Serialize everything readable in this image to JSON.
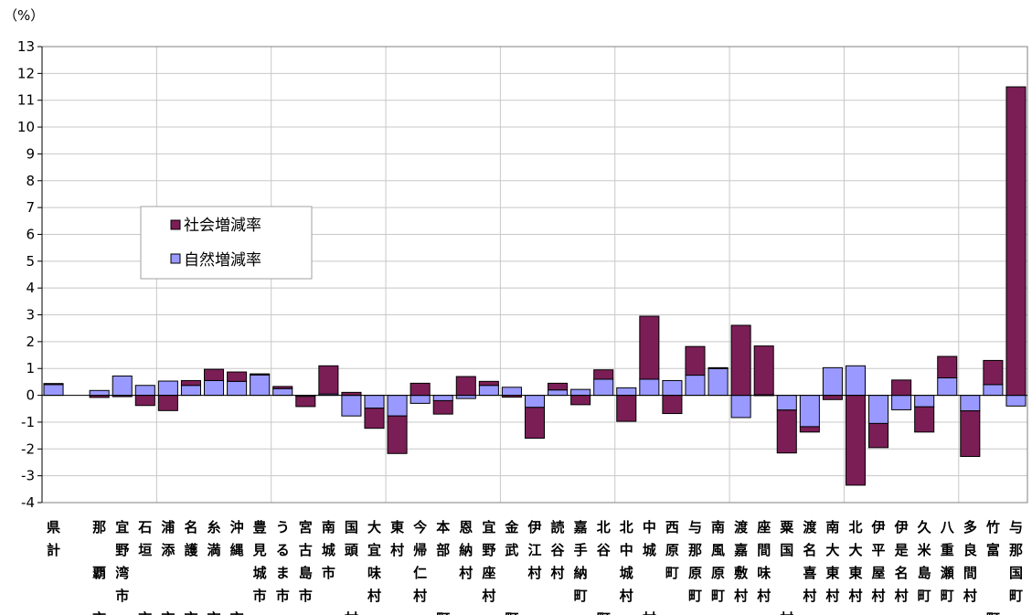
{
  "chart_data": {
    "type": "bar",
    "stacked": true,
    "unit_label": "（%）",
    "ylim": [
      -4,
      13
    ],
    "ytick_step": 1,
    "grid": true,
    "legend_position": "left-middle",
    "colors": {
      "social": "#7B1E56",
      "natural": "#9999FF",
      "grid": "#C8C8C8",
      "axis": "#000000",
      "plot_border": "#808080"
    },
    "categories": [
      "県計",
      "",
      "那覇市",
      "宜野湾市",
      "石垣市",
      "浦添市",
      "名護市",
      "糸満市",
      "沖縄市",
      "豊見城市",
      "うるま市",
      "宮古島市",
      "南城市",
      "国頭村",
      "大宜味村",
      "東村",
      "今帰仁村",
      "本部町",
      "恩納村",
      "宜野座村",
      "金武町",
      "伊江村",
      "読谷村",
      "嘉手納町",
      "北谷町",
      "北中城村",
      "中城村",
      "西原町",
      "与那原町",
      "南風原町",
      "渡嘉敷村",
      "座間味村",
      "粟国村",
      "渡名喜村",
      "南大東村",
      "北大東村",
      "伊平屋村",
      "伊是名村",
      "久米島町",
      "八重瀬町",
      "多良間村",
      "竹富町",
      "与那国町"
    ],
    "category_label_columns": [
      [
        "県",
        "計"
      ],
      [],
      [
        "那",
        "",
        "覇",
        "",
        "市"
      ],
      [
        "宜",
        "野",
        "湾",
        "市"
      ],
      [
        "石",
        "垣",
        "",
        "",
        "市"
      ],
      [
        "浦",
        "添",
        "",
        "",
        "市"
      ],
      [
        "名",
        "護",
        "",
        "",
        "市"
      ],
      [
        "糸",
        "満",
        "",
        "",
        "市"
      ],
      [
        "沖",
        "縄",
        "",
        "",
        "市"
      ],
      [
        "豊",
        "見",
        "城",
        "市"
      ],
      [
        "う",
        "る",
        "ま",
        "市"
      ],
      [
        "宮",
        "古",
        "島",
        "市"
      ],
      [
        "南",
        "城",
        "市"
      ],
      [
        "国",
        "頭",
        "",
        "",
        "村"
      ],
      [
        "大",
        "宜",
        "味",
        "村"
      ],
      [
        "東",
        "村"
      ],
      [
        "今",
        "帰",
        "仁",
        "村"
      ],
      [
        "本",
        "部",
        "",
        "",
        "町"
      ],
      [
        "恩",
        "納",
        "村"
      ],
      [
        "宜",
        "野",
        "座",
        "村"
      ],
      [
        "金",
        "武",
        "",
        "",
        "町"
      ],
      [
        "伊",
        "江",
        "村"
      ],
      [
        "読",
        "谷",
        "村"
      ],
      [
        "嘉",
        "手",
        "納",
        "町"
      ],
      [
        "北",
        "谷",
        "",
        "",
        "町"
      ],
      [
        "北",
        "中",
        "城",
        "村"
      ],
      [
        "中",
        "城",
        "",
        "",
        "村"
      ],
      [
        "西",
        "原",
        "町"
      ],
      [
        "与",
        "那",
        "原",
        "町"
      ],
      [
        "南",
        "風",
        "原",
        "町"
      ],
      [
        "渡",
        "嘉",
        "敷",
        "村"
      ],
      [
        "座",
        "間",
        "味",
        "村"
      ],
      [
        "粟",
        "国",
        "",
        "",
        "村"
      ],
      [
        "渡",
        "名",
        "喜",
        "村"
      ],
      [
        "南",
        "大",
        "東",
        "村"
      ],
      [
        "北",
        "大",
        "東",
        "村"
      ],
      [
        "伊",
        "平",
        "屋",
        "村"
      ],
      [
        "伊",
        "是",
        "名",
        "村"
      ],
      [
        "久",
        "米",
        "島",
        "町"
      ],
      [
        "八",
        "重",
        "瀬",
        "町"
      ],
      [
        "多",
        "良",
        "間",
        "村"
      ],
      [
        "竹",
        "富",
        "",
        "",
        "町"
      ],
      [
        "与",
        "那",
        "国",
        "町"
      ]
    ],
    "series": [
      {
        "name": "社会増減率",
        "key": "social",
        "values": [
          0.04,
          0,
          -0.08,
          -0.05,
          -0.38,
          -0.57,
          0.18,
          0.42,
          0.35,
          0.04,
          0.08,
          -0.38,
          1.05,
          0.11,
          -0.75,
          -1.4,
          0.45,
          -0.5,
          0.7,
          0.15,
          -0.07,
          -1.15,
          0.25,
          -0.35,
          0.35,
          -0.97,
          2.35,
          -0.68,
          1.07,
          0.03,
          2.61,
          1.82,
          -1.6,
          -0.2,
          -0.16,
          -3.35,
          -0.9,
          0.57,
          -0.94,
          0.8,
          -1.7,
          0.9,
          11.5
        ]
      },
      {
        "name": "自然増減率",
        "key": "natural",
        "values": [
          0.4,
          0,
          0.18,
          0.72,
          0.37,
          0.53,
          0.37,
          0.55,
          0.52,
          0.76,
          0.25,
          -0.04,
          0.05,
          -0.77,
          -0.48,
          -0.77,
          -0.3,
          -0.2,
          -0.12,
          0.37,
          0.3,
          -0.45,
          0.2,
          0.22,
          0.6,
          0.28,
          0.6,
          0.55,
          0.75,
          1.0,
          -0.83,
          0.02,
          -0.55,
          -1.17,
          1.03,
          1.1,
          -1.05,
          -0.54,
          -0.43,
          0.65,
          -0.58,
          0.4,
          -0.4
        ]
      }
    ]
  }
}
